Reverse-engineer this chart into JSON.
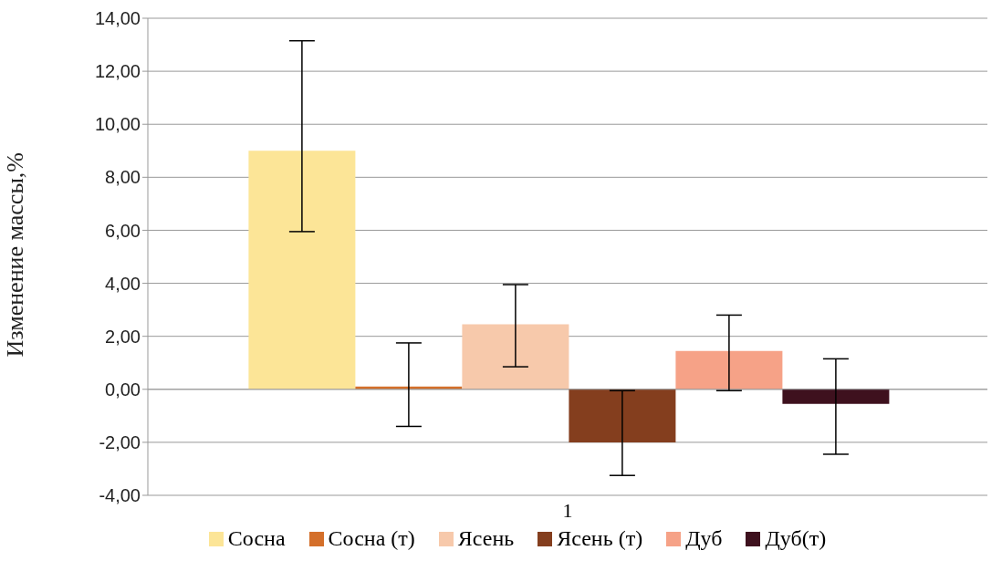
{
  "chart_data": {
    "type": "bar",
    "ylabel": "Изменение массы,%",
    "categories": [
      "1"
    ],
    "series": [
      {
        "name": "Сосна",
        "color": "#fce597",
        "values": [
          9.0
        ],
        "errors": [
          [
            5.95,
            13.15
          ]
        ]
      },
      {
        "name": "Сосна (т)",
        "color": "#d46f2a",
        "values": [
          0.1
        ],
        "errors": [
          [
            -1.4,
            1.75
          ]
        ]
      },
      {
        "name": "Ясень",
        "color": "#f7c9ab",
        "values": [
          2.45
        ],
        "errors": [
          [
            0.85,
            3.95
          ]
        ]
      },
      {
        "name": "Ясень (т)",
        "color": "#843e1e",
        "values": [
          -2.0
        ],
        "errors": [
          [
            -3.25,
            -0.05
          ]
        ]
      },
      {
        "name": "Дуб",
        "color": "#f6a287",
        "values": [
          1.45
        ],
        "errors": [
          [
            -0.05,
            2.8
          ]
        ]
      },
      {
        "name": "Дуб(т)",
        "color": "#3e111e",
        "values": [
          -0.55
        ],
        "errors": [
          [
            -2.45,
            1.15
          ]
        ]
      }
    ],
    "ylim": [
      -4,
      14
    ],
    "yticks": [
      {
        "value": -4,
        "label": "-4,00"
      },
      {
        "value": -2,
        "label": "-2,00"
      },
      {
        "value": 0,
        "label": "0,00"
      },
      {
        "value": 2,
        "label": "2,00"
      },
      {
        "value": 4,
        "label": "4,00"
      },
      {
        "value": 6,
        "label": "6,00"
      },
      {
        "value": 8,
        "label": "8,00"
      },
      {
        "value": 10,
        "label": "10,00"
      },
      {
        "value": 12,
        "label": "12,00"
      },
      {
        "value": 14,
        "label": "14,00"
      }
    ],
    "grid": "y",
    "legend": "bottom"
  }
}
